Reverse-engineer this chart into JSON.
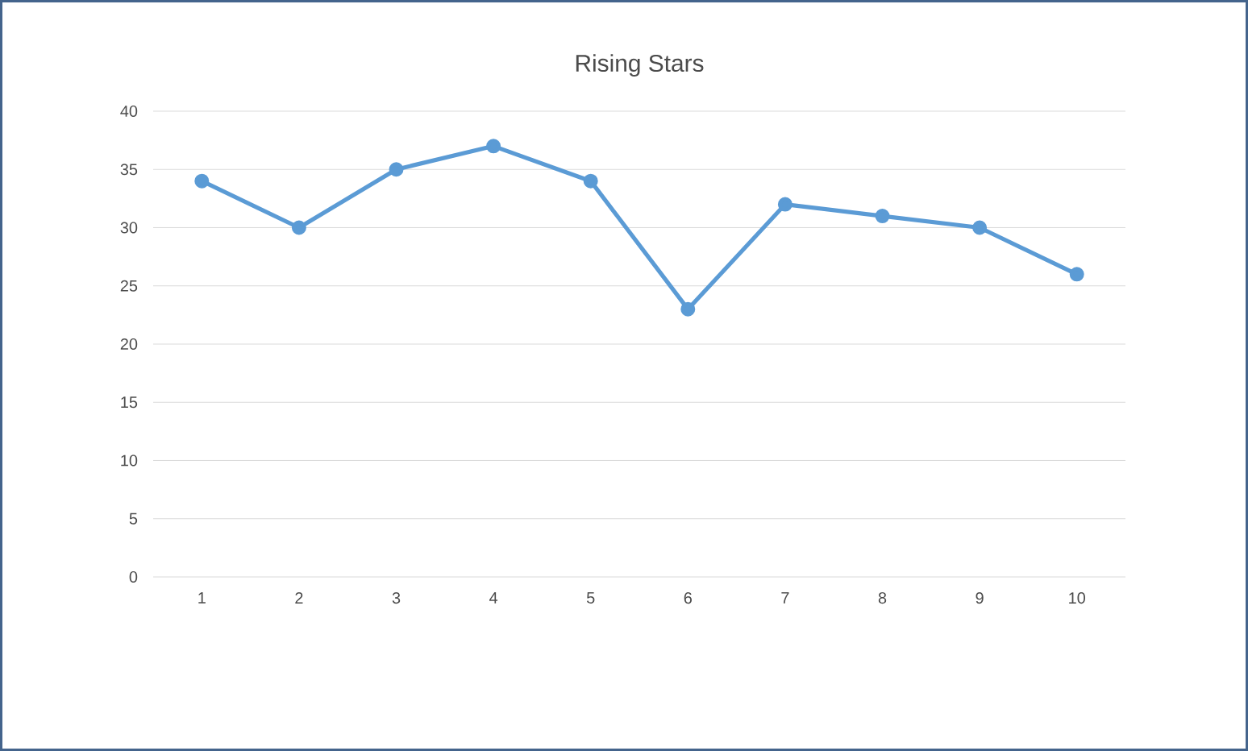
{
  "chart_data": {
    "type": "line",
    "title": "Rising Stars",
    "categories": [
      "1",
      "2",
      "3",
      "4",
      "5",
      "6",
      "7",
      "8",
      "9",
      "10"
    ],
    "values": [
      34,
      30,
      35,
      37,
      34,
      23,
      32,
      31,
      30,
      26
    ],
    "color": "#5b9bd5",
    "ylim": [
      0,
      40
    ],
    "yticks": [
      0,
      5,
      10,
      15,
      20,
      25,
      30,
      35,
      40
    ],
    "grid": "y",
    "marker": "circle",
    "line_style": "solid"
  }
}
